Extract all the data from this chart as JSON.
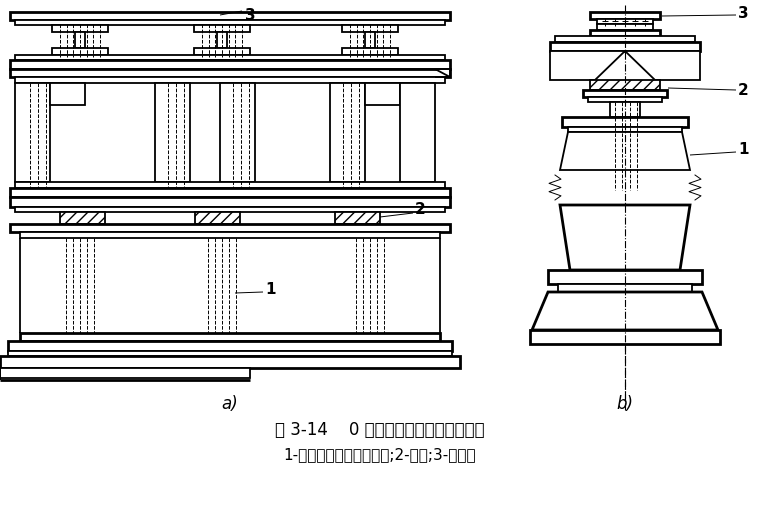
{
  "title_line1": "图 3-14    0 号块与桥墩的临时固结措施",
  "title_line2": "1-预埋临时锚固预应力筋;2-支座;3-工字钢",
  "label_a": "a)",
  "label_b": "b)",
  "bg_color": "#ffffff",
  "lw_thick": 2.0,
  "lw_med": 1.3,
  "lw_thin": 0.7
}
